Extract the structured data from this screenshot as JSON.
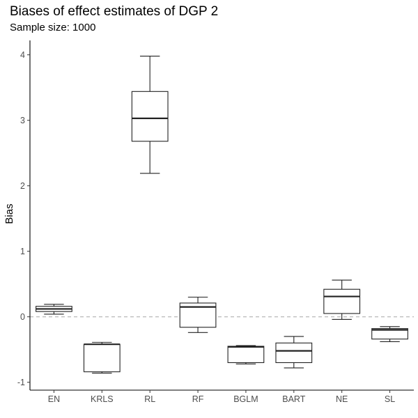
{
  "chart_data": {
    "type": "boxplot",
    "title": "Biases of effect estimates of DGP 2",
    "subtitle": "Sample size: 1000",
    "xlabel": "",
    "ylabel": "Bias",
    "ylim": [
      -1.12,
      4.22
    ],
    "yticks": [
      -1,
      0,
      1,
      2,
      3,
      4
    ],
    "reference_line": 0,
    "grid": false,
    "categories": [
      "EN",
      "KRLS",
      "RL",
      "RF",
      "BGLM",
      "BART",
      "NE",
      "SL"
    ],
    "boxes": [
      {
        "min": 0.04,
        "q1": 0.08,
        "median": 0.12,
        "q3": 0.16,
        "max": 0.19
      },
      {
        "min": -0.86,
        "q1": -0.84,
        "median": -0.42,
        "q3": -0.42,
        "max": -0.39
      },
      {
        "min": 2.19,
        "q1": 2.68,
        "median": 3.03,
        "q3": 3.44,
        "max": 3.98
      },
      {
        "min": -0.24,
        "q1": -0.16,
        "median": 0.15,
        "q3": 0.21,
        "max": 0.3
      },
      {
        "min": -0.72,
        "q1": -0.7,
        "median": -0.46,
        "q3": -0.45,
        "max": -0.44
      },
      {
        "min": -0.78,
        "q1": -0.7,
        "median": -0.52,
        "q3": -0.4,
        "max": -0.3
      },
      {
        "min": -0.04,
        "q1": 0.05,
        "median": 0.31,
        "q3": 0.42,
        "max": 0.56
      },
      {
        "min": -0.38,
        "q1": -0.34,
        "median": -0.2,
        "q3": -0.18,
        "max": -0.15
      }
    ]
  }
}
